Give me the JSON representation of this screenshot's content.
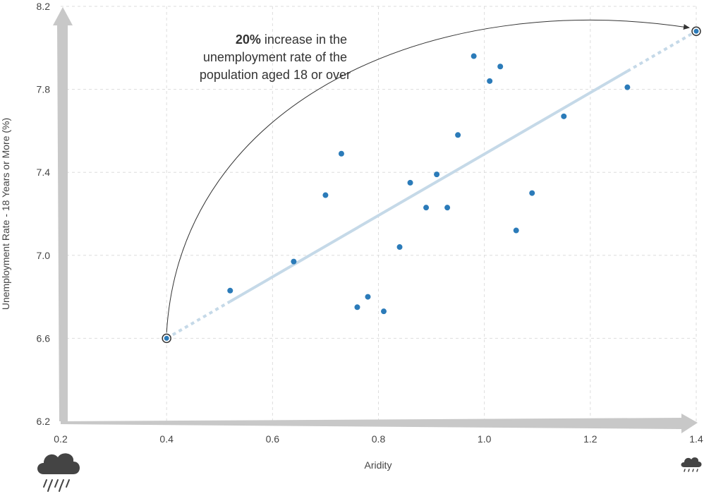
{
  "chart_data": {
    "type": "scatter",
    "xlabel": "Aridity",
    "ylabel": "Unemployment Rate - 18 Years or More (%)",
    "xlim": [
      0.2,
      1.4
    ],
    "ylim": [
      6.2,
      8.2
    ],
    "xticks": [
      "0.2",
      "0.4",
      "0.6",
      "0.8",
      "1.0",
      "1.2",
      "1.4"
    ],
    "yticks": [
      "6.2",
      "6.6",
      "7.0",
      "7.4",
      "7.8",
      "8.2"
    ],
    "grid": true,
    "points": [
      {
        "x": 0.52,
        "y": 6.83
      },
      {
        "x": 0.64,
        "y": 6.97
      },
      {
        "x": 0.7,
        "y": 7.29
      },
      {
        "x": 0.73,
        "y": 7.49
      },
      {
        "x": 0.76,
        "y": 6.75
      },
      {
        "x": 0.78,
        "y": 6.8
      },
      {
        "x": 0.81,
        "y": 6.73
      },
      {
        "x": 0.84,
        "y": 7.04
      },
      {
        "x": 0.86,
        "y": 7.35
      },
      {
        "x": 0.89,
        "y": 7.23
      },
      {
        "x": 0.91,
        "y": 7.39
      },
      {
        "x": 0.93,
        "y": 7.23
      },
      {
        "x": 0.95,
        "y": 7.58
      },
      {
        "x": 0.98,
        "y": 7.96
      },
      {
        "x": 1.01,
        "y": 7.84
      },
      {
        "x": 1.03,
        "y": 7.91
      },
      {
        "x": 1.06,
        "y": 7.12
      },
      {
        "x": 1.09,
        "y": 7.3
      },
      {
        "x": 1.15,
        "y": 7.67
      },
      {
        "x": 1.27,
        "y": 7.81
      }
    ],
    "trendline": {
      "start": {
        "x": 0.4,
        "y": 6.6
      },
      "end": {
        "x": 1.4,
        "y": 8.08
      },
      "solid_from_x": 0.52,
      "solid_to_x": 1.27
    },
    "annotation": {
      "bold": "20%",
      "line1": " increase in the",
      "line2": "unemployment rate of the",
      "line3": "population aged 18 or over"
    },
    "icons": {
      "left": "heavy-rain-cloud-icon",
      "right": "light-rain-cloud-icon"
    },
    "colors": {
      "points": "#2b7bb9",
      "trend": "#c5d9e8",
      "axis_arrow": "#c8c8c8",
      "grid": "#dddddd",
      "text": "#444444",
      "arc": "#333333"
    }
  }
}
